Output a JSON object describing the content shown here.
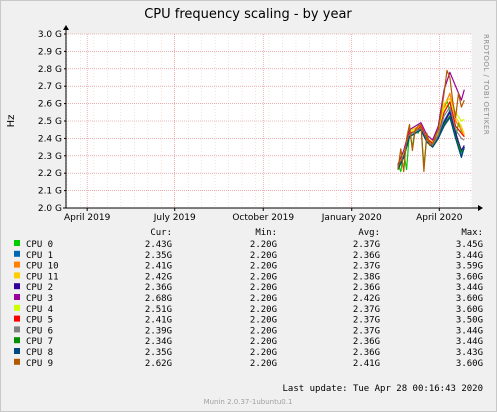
{
  "chart_data": {
    "type": "line",
    "title": "CPU frequency scaling - by year",
    "ylabel": "Hz",
    "side_label": "RRDTOOL / TOBI OETIKER",
    "ylim": [
      2.0,
      3.0
    ],
    "y_ticks": [
      {
        "value": 3.0,
        "label": "3.0 G"
      },
      {
        "value": 2.9,
        "label": "2.9 G"
      },
      {
        "value": 2.8,
        "label": "2.8 G"
      },
      {
        "value": 2.7,
        "label": "2.7 G"
      },
      {
        "value": 2.6,
        "label": "2.6 G"
      },
      {
        "value": 2.5,
        "label": "2.5 G"
      },
      {
        "value": 2.4,
        "label": "2.4 G"
      },
      {
        "value": 2.3,
        "label": "2.3 G"
      },
      {
        "value": 2.2,
        "label": "2.2 G"
      },
      {
        "value": 2.1,
        "label": "2.1 G"
      },
      {
        "value": 2.0,
        "label": "2.0 G"
      }
    ],
    "xlim": [
      "2019-03-10",
      "2020-05-05"
    ],
    "x_ticks": [
      {
        "date": "2019-04-01",
        "label": "April 2019"
      },
      {
        "date": "2019-07-01",
        "label": "July 2019"
      },
      {
        "date": "2019-10-01",
        "label": "October 2019"
      },
      {
        "date": "2020-01-01",
        "label": "January 2020"
      },
      {
        "date": "2020-04-01",
        "label": "April 2020"
      }
    ],
    "x_minor": [
      "2019-03-11",
      "2019-03-25",
      "2019-04-08",
      "2019-04-22",
      "2019-05-06",
      "2019-05-20",
      "2019-06-03",
      "2019-06-17",
      "2019-07-01",
      "2019-07-15",
      "2019-07-29",
      "2019-08-12",
      "2019-08-26",
      "2019-09-09",
      "2019-09-23",
      "2019-10-07",
      "2019-10-21",
      "2019-11-04",
      "2019-11-18",
      "2019-12-02",
      "2019-12-16",
      "2019-12-30",
      "2020-01-13",
      "2020-01-27",
      "2020-02-10",
      "2020-02-24",
      "2020-03-09",
      "2020-03-23",
      "2020-04-06",
      "2020-04-20",
      "2020-05-04"
    ],
    "series": [
      {
        "name": "CPU 0",
        "color": "#00cc00",
        "cur": "2.43G",
        "min": "2.20G",
        "avg": "2.37G",
        "max": "3.45G",
        "x": [
          "2020-02-18",
          "2020-02-21",
          "2020-02-24",
          "2020-02-27",
          "2020-03-01",
          "2020-03-04",
          "2020-03-07",
          "2020-03-10",
          "2020-03-13",
          "2020-03-16",
          "2020-03-19",
          "2020-03-22",
          "2020-03-25",
          "2020-03-28",
          "2020-03-31",
          "2020-04-03",
          "2020-04-06",
          "2020-04-09",
          "2020-04-12",
          "2020-04-15",
          "2020-04-18",
          "2020-04-21",
          "2020-04-24",
          "2020-04-27"
        ],
        "y": [
          2.25,
          2.21,
          2.32,
          2.22,
          2.44,
          2.35,
          2.46,
          2.43,
          2.47,
          2.24,
          2.41,
          2.36,
          2.38,
          2.42,
          2.45,
          2.51,
          2.57,
          2.62,
          2.55,
          2.46,
          2.4,
          2.49,
          2.44,
          2.43
        ]
      },
      {
        "name": "CPU 1",
        "color": "#0066b3",
        "cur": "2.35G",
        "min": "2.20G",
        "avg": "2.36G",
        "max": "3.44G",
        "x": [
          "2020-02-18",
          "2020-02-24",
          "2020-03-01",
          "2020-03-07",
          "2020-03-13",
          "2020-03-19",
          "2020-03-25",
          "2020-03-31",
          "2020-04-06",
          "2020-04-12",
          "2020-04-18",
          "2020-04-24",
          "2020-04-27"
        ],
        "y": [
          2.24,
          2.3,
          2.42,
          2.44,
          2.46,
          2.4,
          2.36,
          2.41,
          2.5,
          2.56,
          2.44,
          2.3,
          2.35
        ]
      },
      {
        "name": "CPU 10",
        "color": "#ff8000",
        "cur": "2.41G",
        "min": "2.20G",
        "avg": "2.37G",
        "max": "3.59G",
        "x": [
          "2020-02-18",
          "2020-02-24",
          "2020-03-01",
          "2020-03-07",
          "2020-03-13",
          "2020-03-19",
          "2020-03-25",
          "2020-03-31",
          "2020-04-06",
          "2020-04-12",
          "2020-04-18",
          "2020-04-24",
          "2020-04-27"
        ],
        "y": [
          2.23,
          2.31,
          2.43,
          2.45,
          2.48,
          2.39,
          2.37,
          2.44,
          2.58,
          2.66,
          2.5,
          2.45,
          2.41
        ]
      },
      {
        "name": "CPU 11",
        "color": "#ffcc00",
        "cur": "2.42G",
        "min": "2.20G",
        "avg": "2.38G",
        "max": "3.60G",
        "x": [
          "2020-02-18",
          "2020-02-24",
          "2020-03-01",
          "2020-03-07",
          "2020-03-13",
          "2020-03-19",
          "2020-03-25",
          "2020-03-31",
          "2020-04-06",
          "2020-04-12",
          "2020-04-18",
          "2020-04-24",
          "2020-04-27"
        ],
        "y": [
          2.24,
          2.32,
          2.44,
          2.46,
          2.47,
          2.4,
          2.38,
          2.45,
          2.6,
          2.63,
          2.52,
          2.47,
          2.42
        ]
      },
      {
        "name": "CPU 2",
        "color": "#330099",
        "cur": "2.36G",
        "min": "2.20G",
        "avg": "2.36G",
        "max": "3.44G",
        "x": [
          "2020-02-18",
          "2020-02-24",
          "2020-03-01",
          "2020-03-07",
          "2020-03-13",
          "2020-03-19",
          "2020-03-25",
          "2020-03-31",
          "2020-04-06",
          "2020-04-12",
          "2020-04-18",
          "2020-04-24",
          "2020-04-27"
        ],
        "y": [
          2.23,
          2.29,
          2.41,
          2.43,
          2.45,
          2.38,
          2.35,
          2.4,
          2.49,
          2.55,
          2.43,
          2.33,
          2.36
        ]
      },
      {
        "name": "CPU 3",
        "color": "#990099",
        "cur": "2.68G",
        "min": "2.20G",
        "avg": "2.42G",
        "max": "3.60G",
        "x": [
          "2020-02-18",
          "2020-02-24",
          "2020-03-01",
          "2020-03-07",
          "2020-03-13",
          "2020-03-19",
          "2020-03-25",
          "2020-03-31",
          "2020-04-06",
          "2020-04-12",
          "2020-04-18",
          "2020-04-24",
          "2020-04-27"
        ],
        "y": [
          2.25,
          2.33,
          2.45,
          2.47,
          2.49,
          2.42,
          2.39,
          2.47,
          2.68,
          2.78,
          2.7,
          2.62,
          2.68
        ]
      },
      {
        "name": "CPU 4",
        "color": "#ccff00",
        "cur": "2.51G",
        "min": "2.20G",
        "avg": "2.37G",
        "max": "3.60G",
        "x": [
          "2020-02-18",
          "2020-02-24",
          "2020-03-01",
          "2020-03-07",
          "2020-03-13",
          "2020-03-19",
          "2020-03-25",
          "2020-03-31",
          "2020-04-06",
          "2020-04-12",
          "2020-04-18",
          "2020-04-24",
          "2020-04-27"
        ],
        "y": [
          2.24,
          2.31,
          2.43,
          2.45,
          2.46,
          2.39,
          2.37,
          2.43,
          2.57,
          2.61,
          2.55,
          2.5,
          2.51
        ]
      },
      {
        "name": "CPU 5",
        "color": "#ff0000",
        "cur": "2.41G",
        "min": "2.20G",
        "avg": "2.37G",
        "max": "3.50G",
        "x": [
          "2020-02-18",
          "2020-02-24",
          "2020-03-01",
          "2020-03-07",
          "2020-03-13",
          "2020-03-19",
          "2020-03-25",
          "2020-03-31",
          "2020-04-06",
          "2020-04-12",
          "2020-04-18",
          "2020-04-24",
          "2020-04-27"
        ],
        "y": [
          2.24,
          2.3,
          2.43,
          2.44,
          2.47,
          2.4,
          2.37,
          2.42,
          2.55,
          2.61,
          2.47,
          2.43,
          2.41
        ]
      },
      {
        "name": "CPU 6",
        "color": "#808080",
        "cur": "2.39G",
        "min": "2.20G",
        "avg": "2.37G",
        "max": "3.44G",
        "x": [
          "2020-02-18",
          "2020-02-24",
          "2020-03-01",
          "2020-03-07",
          "2020-03-13",
          "2020-03-19",
          "2020-03-25",
          "2020-03-31",
          "2020-04-06",
          "2020-04-12",
          "2020-04-18",
          "2020-04-24",
          "2020-04-27"
        ],
        "y": [
          2.23,
          2.3,
          2.42,
          2.44,
          2.46,
          2.39,
          2.36,
          2.42,
          2.53,
          2.58,
          2.45,
          2.4,
          2.39
        ]
      },
      {
        "name": "CPU 7",
        "color": "#008f00",
        "cur": "2.34G",
        "min": "2.20G",
        "avg": "2.36G",
        "max": "3.44G",
        "x": [
          "2020-02-18",
          "2020-02-24",
          "2020-03-01",
          "2020-03-07",
          "2020-03-13",
          "2020-03-19",
          "2020-03-25",
          "2020-03-31",
          "2020-04-06",
          "2020-04-12",
          "2020-04-18",
          "2020-04-24",
          "2020-04-27"
        ],
        "y": [
          2.23,
          2.29,
          2.41,
          2.43,
          2.45,
          2.38,
          2.35,
          2.4,
          2.48,
          2.53,
          2.41,
          2.32,
          2.34
        ]
      },
      {
        "name": "CPU 8",
        "color": "#00487d",
        "cur": "2.35G",
        "min": "2.20G",
        "avg": "2.36G",
        "max": "3.43G",
        "x": [
          "2020-02-18",
          "2020-02-24",
          "2020-03-01",
          "2020-03-07",
          "2020-03-13",
          "2020-03-19",
          "2020-03-25",
          "2020-03-31",
          "2020-04-06",
          "2020-04-12",
          "2020-04-18",
          "2020-04-24",
          "2020-04-27"
        ],
        "y": [
          2.22,
          2.29,
          2.41,
          2.43,
          2.45,
          2.38,
          2.35,
          2.4,
          2.47,
          2.52,
          2.4,
          2.29,
          2.35
        ]
      },
      {
        "name": "CPU 9",
        "color": "#b35a00",
        "cur": "2.62G",
        "min": "2.20G",
        "avg": "2.41G",
        "max": "3.60G",
        "x": [
          "2020-02-18",
          "2020-02-21",
          "2020-02-24",
          "2020-02-27",
          "2020-03-01",
          "2020-03-04",
          "2020-03-07",
          "2020-03-10",
          "2020-03-13",
          "2020-03-16",
          "2020-03-19",
          "2020-03-22",
          "2020-03-25",
          "2020-03-28",
          "2020-03-31",
          "2020-04-03",
          "2020-04-06",
          "2020-04-09",
          "2020-04-12",
          "2020-04-15",
          "2020-04-18",
          "2020-04-21",
          "2020-04-24",
          "2020-04-27"
        ],
        "y": [
          2.22,
          2.34,
          2.21,
          2.4,
          2.48,
          2.33,
          2.45,
          2.47,
          2.48,
          2.21,
          2.43,
          2.36,
          2.37,
          2.41,
          2.45,
          2.55,
          2.66,
          2.79,
          2.75,
          2.61,
          2.52,
          2.66,
          2.58,
          2.62
        ]
      }
    ]
  },
  "legend": {
    "headers": {
      "cur": "Cur:",
      "min": "Min:",
      "avg": "Avg:",
      "max": "Max:"
    }
  },
  "last_update": "Last update: Tue Apr 28 00:16:43 2020",
  "footer": "Munin 2.0.37-1ubuntu0.1",
  "colors": {
    "background": "#f0f0f0",
    "plot_background": "#ffffff",
    "grid_major": "#e08080",
    "grid_minor": "#e8c0c0",
    "axis": "#000000"
  }
}
